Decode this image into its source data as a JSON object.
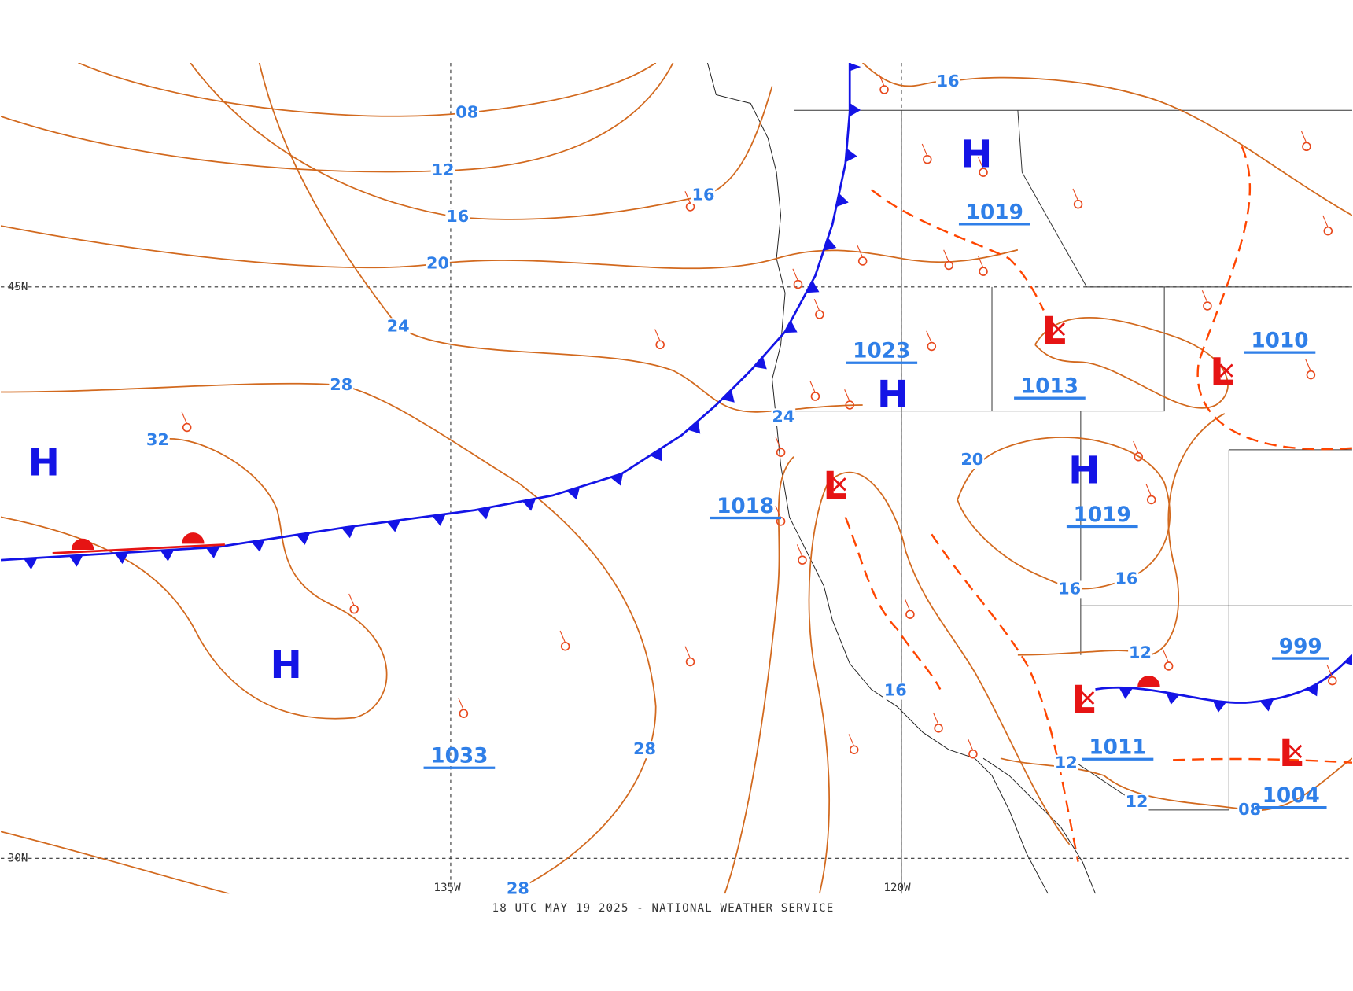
{
  "footer": "18 UTC MAY 19 2025 - NATIONAL WEATHER SERVICE",
  "grid_labels": [
    "45N",
    "30N",
    "135W",
    "120W"
  ],
  "isobar_labels": [
    "08",
    "12",
    "16",
    "20",
    "24",
    "28",
    "32",
    "16",
    "16",
    "24",
    "28",
    "28",
    "20",
    "16",
    "16",
    "12",
    "16",
    "12",
    "12",
    "08"
  ],
  "centers": [
    {
      "symbol": "H"
    },
    {
      "symbol": "H"
    },
    {
      "pressure": "1033"
    },
    {
      "symbol": "H",
      "pressure": "1019"
    },
    {
      "symbol": "H",
      "pressure": "1023"
    },
    {
      "symbol": "L",
      "pressure": "1013"
    },
    {
      "symbol": "L",
      "pressure": "1010"
    },
    {
      "symbol": "L",
      "pressure": "1018"
    },
    {
      "symbol": "H",
      "pressure": "1019"
    },
    {
      "symbol": "L",
      "pressure": "1011"
    },
    {
      "pressure": "999"
    },
    {
      "symbol": "L",
      "pressure": "1004"
    }
  ]
}
